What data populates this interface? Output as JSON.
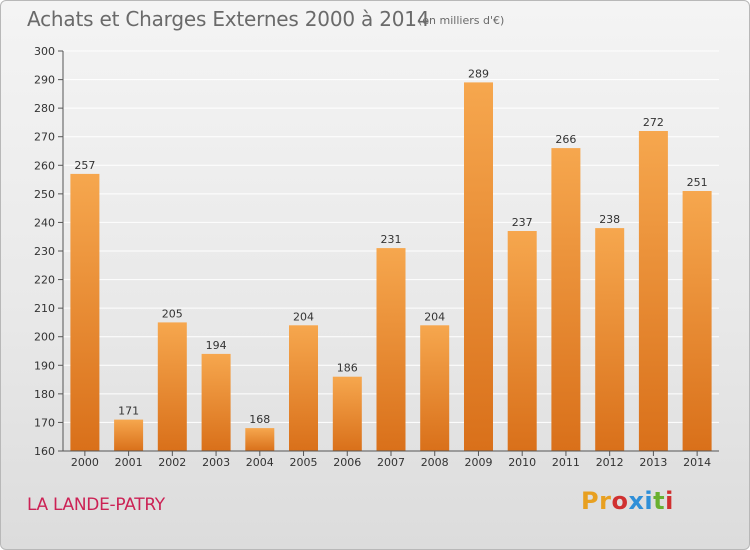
{
  "header": {
    "title": "Achats et Charges Externes 2000 à 2014",
    "subtitle": "(en milliers d'€)"
  },
  "footer": {
    "place": "LA LANDE-PATRY",
    "logo_text": "Proxiti",
    "logo_colors": [
      "#e8a020",
      "#e8a020",
      "#d03030",
      "#2f8fd8",
      "#2f8fd8",
      "#69b030",
      "#d03030"
    ]
  },
  "colors": {
    "bar_light": "#f6a74e",
    "bar_dark": "#d9701a",
    "grid": "#ffffff",
    "axis": "#555555"
  },
  "chart_data": {
    "type": "bar",
    "title": "Achats et Charges Externes 2000 à 2014",
    "subtitle": "(en milliers d'€)",
    "categories": [
      "2000",
      "2001",
      "2002",
      "2003",
      "2004",
      "2005",
      "2006",
      "2007",
      "2008",
      "2009",
      "2010",
      "2011",
      "2012",
      "2013",
      "2014"
    ],
    "values": [
      257,
      171,
      205,
      194,
      168,
      204,
      186,
      231,
      204,
      289,
      237,
      266,
      238,
      272,
      251
    ],
    "ylim": [
      160,
      300
    ],
    "yticks": [
      160,
      170,
      180,
      190,
      200,
      210,
      220,
      230,
      240,
      250,
      260,
      270,
      280,
      290,
      300
    ],
    "grid": true,
    "xlabel": "",
    "ylabel": ""
  }
}
